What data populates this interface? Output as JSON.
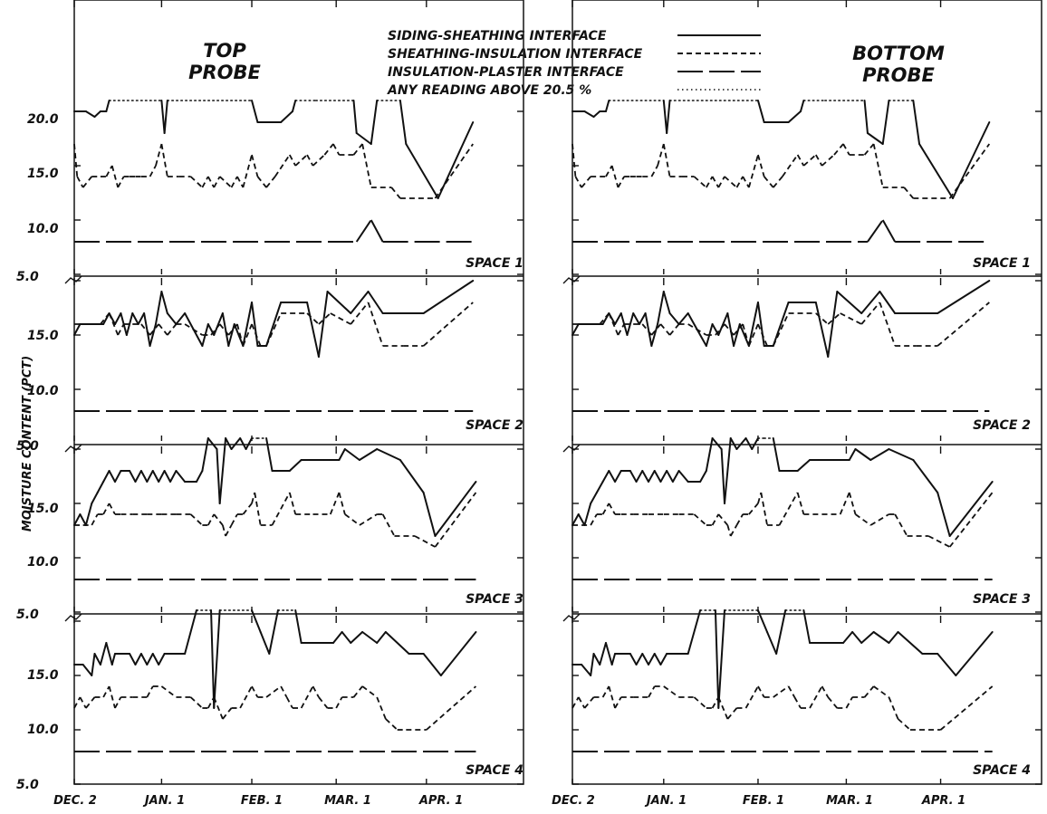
{
  "figure": {
    "ylabel": "MOISTURE CONTENT (PCT)",
    "legend": {
      "placement": "top-center",
      "entries": [
        {
          "label": "SIDING-SHEATHING INTERFACE",
          "style": "solid"
        },
        {
          "label": "SHEATHING-INSULATION INTERFACE",
          "style": "short-dash"
        },
        {
          "label": "INSULATION-PLASTER INTERFACE",
          "style": "long-dash"
        },
        {
          "label": "ANY READING ABOVE 20.5 %",
          "style": "dotted"
        }
      ]
    },
    "columns": [
      {
        "title_line1": "TOP",
        "title_line2": "PROBE"
      },
      {
        "title_line1": "BOTTOM",
        "title_line2": "PROBE"
      }
    ],
    "x_ticks": [
      "DEC. 2",
      "JAN. 1",
      "FEB. 1",
      "MAR. 1",
      "APR. 1"
    ],
    "y_ticks": [
      "5.0",
      "10.0",
      "15.0",
      "20.0"
    ],
    "panel_labels": [
      "SPACE 1",
      "SPACE 2",
      "SPACE 3",
      "SPACE 4"
    ],
    "colors": {
      "ink": "#111111",
      "paper": "#ffffff"
    }
  },
  "chart_data": {
    "type": "line",
    "x_unit": "days since DEC. 2",
    "x_tick_values": [
      0,
      30,
      61,
      90,
      121
    ],
    "xlim": [
      0,
      150
    ],
    "ylim": [
      5,
      21.8
    ],
    "grid": false,
    "above_threshold": 20.5,
    "panels": [
      {
        "space": "SPACE 1",
        "siding_sheathing": [
          [
            0,
            20
          ],
          [
            4,
            20
          ],
          [
            7,
            19.5
          ],
          [
            9,
            20
          ],
          [
            11,
            20
          ],
          [
            12,
            21
          ],
          [
            30,
            21
          ],
          [
            31,
            18
          ],
          [
            32,
            21
          ],
          [
            61,
            21
          ],
          [
            63,
            19
          ],
          [
            71,
            19
          ],
          [
            75,
            20
          ],
          [
            76,
            21
          ],
          [
            83,
            21
          ],
          [
            96,
            21
          ],
          [
            97,
            18
          ],
          [
            102,
            17
          ],
          [
            104,
            21
          ],
          [
            112,
            21
          ],
          [
            114,
            17
          ],
          [
            125,
            12
          ],
          [
            137,
            19
          ]
        ],
        "sheathing_insulation": [
          [
            0,
            17
          ],
          [
            1,
            14
          ],
          [
            3,
            13
          ],
          [
            6,
            14
          ],
          [
            9,
            14
          ],
          [
            11,
            14
          ],
          [
            13,
            15
          ],
          [
            15,
            13
          ],
          [
            17,
            14
          ],
          [
            19,
            14
          ],
          [
            21,
            14
          ],
          [
            23,
            14
          ],
          [
            26,
            14
          ],
          [
            28,
            15
          ],
          [
            30,
            17
          ],
          [
            32,
            14
          ],
          [
            36,
            14
          ],
          [
            40,
            14
          ],
          [
            44,
            13
          ],
          [
            46,
            14
          ],
          [
            48,
            13
          ],
          [
            50,
            14
          ],
          [
            54,
            13
          ],
          [
            56,
            14
          ],
          [
            58,
            13
          ],
          [
            61,
            16
          ],
          [
            63,
            14
          ],
          [
            66,
            13
          ],
          [
            69,
            14
          ],
          [
            74,
            16
          ],
          [
            76,
            15
          ],
          [
            80,
            16
          ],
          [
            82,
            15
          ],
          [
            86,
            16
          ],
          [
            89,
            17
          ],
          [
            91,
            16
          ],
          [
            96,
            16
          ],
          [
            99,
            17
          ],
          [
            102,
            13
          ],
          [
            109,
            13
          ],
          [
            112,
            12
          ],
          [
            124,
            12
          ],
          [
            137,
            17
          ]
        ],
        "insulation_plaster": [
          [
            0,
            8
          ],
          [
            97,
            8
          ],
          [
            102,
            10
          ],
          [
            106,
            8
          ],
          [
            137,
            8
          ]
        ]
      },
      {
        "space": "SPACE 2",
        "siding_sheathing": [
          [
            0,
            15
          ],
          [
            2,
            16
          ],
          [
            10,
            16
          ],
          [
            12,
            17
          ],
          [
            14,
            16
          ],
          [
            16,
            17
          ],
          [
            18,
            15
          ],
          [
            20,
            17
          ],
          [
            22,
            16
          ],
          [
            24,
            17
          ],
          [
            26,
            14
          ],
          [
            28,
            16
          ],
          [
            30,
            19
          ],
          [
            32,
            17
          ],
          [
            35,
            16
          ],
          [
            38,
            17
          ],
          [
            44,
            14
          ],
          [
            46,
            16
          ],
          [
            48,
            15
          ],
          [
            51,
            17
          ],
          [
            53,
            14
          ],
          [
            55,
            16
          ],
          [
            58,
            14
          ],
          [
            61,
            18
          ],
          [
            63,
            14
          ],
          [
            66,
            14
          ],
          [
            71,
            18
          ],
          [
            80,
            18
          ],
          [
            84,
            13
          ],
          [
            87,
            19
          ],
          [
            95,
            17
          ],
          [
            101,
            19
          ],
          [
            106,
            17
          ],
          [
            115,
            17
          ],
          [
            120,
            17
          ],
          [
            137,
            20
          ]
        ],
        "sheathing_insulation": [
          [
            0,
            16
          ],
          [
            5,
            16
          ],
          [
            9,
            16
          ],
          [
            12,
            17
          ],
          [
            15,
            15
          ],
          [
            17,
            16
          ],
          [
            20,
            16
          ],
          [
            23,
            16
          ],
          [
            26,
            15
          ],
          [
            29,
            16
          ],
          [
            32,
            15
          ],
          [
            35,
            16
          ],
          [
            38,
            16
          ],
          [
            44,
            15
          ],
          [
            47,
            15
          ],
          [
            50,
            16
          ],
          [
            53,
            15
          ],
          [
            56,
            16
          ],
          [
            58,
            14
          ],
          [
            61,
            16
          ],
          [
            64,
            14
          ],
          [
            66,
            14
          ],
          [
            71,
            17
          ],
          [
            80,
            17
          ],
          [
            84,
            16
          ],
          [
            88,
            17
          ],
          [
            95,
            16
          ],
          [
            101,
            18
          ],
          [
            106,
            14
          ],
          [
            113,
            14
          ],
          [
            120,
            14
          ],
          [
            137,
            18
          ]
        ],
        "insulation_plaster": [
          [
            0,
            8
          ],
          [
            137,
            8
          ]
        ]
      },
      {
        "space": "SPACE 3",
        "siding_sheathing": [
          [
            0,
            13
          ],
          [
            2,
            14
          ],
          [
            4,
            13
          ],
          [
            6,
            15
          ],
          [
            8,
            16
          ],
          [
            10,
            17
          ],
          [
            12,
            18
          ],
          [
            14,
            17
          ],
          [
            16,
            18
          ],
          [
            19,
            18
          ],
          [
            21,
            17
          ],
          [
            23,
            18
          ],
          [
            25,
            17
          ],
          [
            27,
            18
          ],
          [
            29,
            17
          ],
          [
            31,
            18
          ],
          [
            33,
            17
          ],
          [
            35,
            18
          ],
          [
            38,
            17
          ],
          [
            42,
            17
          ],
          [
            44,
            18
          ],
          [
            46,
            21
          ],
          [
            49,
            20
          ],
          [
            50,
            15
          ],
          [
            52,
            21
          ],
          [
            54,
            20
          ],
          [
            57,
            21
          ],
          [
            59,
            20
          ],
          [
            61,
            21
          ],
          [
            63,
            21
          ],
          [
            66,
            21
          ],
          [
            68,
            18
          ],
          [
            74,
            18
          ],
          [
            78,
            19
          ],
          [
            81,
            19
          ],
          [
            86,
            19
          ],
          [
            88,
            19
          ],
          [
            91,
            19
          ],
          [
            93,
            20
          ],
          [
            98,
            19
          ],
          [
            104,
            20
          ],
          [
            112,
            19
          ],
          [
            120,
            16
          ],
          [
            124,
            12
          ],
          [
            138,
            17
          ]
        ],
        "sheathing_insulation": [
          [
            0,
            13
          ],
          [
            3,
            13
          ],
          [
            6,
            13
          ],
          [
            8,
            14
          ],
          [
            10,
            14
          ],
          [
            12,
            15
          ],
          [
            14,
            14
          ],
          [
            16,
            14
          ],
          [
            20,
            14
          ],
          [
            25,
            14
          ],
          [
            30,
            14
          ],
          [
            35,
            14
          ],
          [
            40,
            14
          ],
          [
            44,
            13
          ],
          [
            46,
            13
          ],
          [
            48,
            14
          ],
          [
            51,
            13
          ],
          [
            52,
            12
          ],
          [
            54,
            13
          ],
          [
            56,
            14
          ],
          [
            58,
            14
          ],
          [
            61,
            15
          ],
          [
            62,
            16
          ],
          [
            64,
            13
          ],
          [
            68,
            13
          ],
          [
            74,
            16
          ],
          [
            76,
            14
          ],
          [
            82,
            14
          ],
          [
            88,
            14
          ],
          [
            91,
            16
          ],
          [
            93,
            14
          ],
          [
            98,
            13
          ],
          [
            104,
            14
          ],
          [
            106,
            14
          ],
          [
            110,
            12
          ],
          [
            117,
            12
          ],
          [
            124,
            11
          ],
          [
            138,
            16
          ]
        ],
        "insulation_plaster": [
          [
            0,
            8
          ],
          [
            138,
            8
          ]
        ]
      },
      {
        "space": "SPACE 4",
        "siding_sheathing": [
          [
            0,
            16
          ],
          [
            3,
            16
          ],
          [
            6,
            15
          ],
          [
            7,
            17
          ],
          [
            9,
            16
          ],
          [
            11,
            18
          ],
          [
            13,
            16
          ],
          [
            14,
            17
          ],
          [
            19,
            17
          ],
          [
            21,
            16
          ],
          [
            23,
            17
          ],
          [
            25,
            16
          ],
          [
            27,
            17
          ],
          [
            29,
            16
          ],
          [
            31,
            17
          ],
          [
            35,
            17
          ],
          [
            38,
            17
          ],
          [
            42,
            21
          ],
          [
            47,
            21
          ],
          [
            48,
            12
          ],
          [
            50,
            21
          ],
          [
            61,
            21
          ],
          [
            64,
            19
          ],
          [
            67,
            17
          ],
          [
            70,
            21
          ],
          [
            73,
            21
          ],
          [
            76,
            21
          ],
          [
            78,
            18
          ],
          [
            82,
            18
          ],
          [
            86,
            18
          ],
          [
            89,
            18
          ],
          [
            92,
            19
          ],
          [
            95,
            18
          ],
          [
            99,
            19
          ],
          [
            104,
            18
          ],
          [
            107,
            19
          ],
          [
            115,
            17
          ],
          [
            120,
            17
          ],
          [
            126,
            15
          ],
          [
            138,
            19
          ]
        ],
        "sheathing_insulation": [
          [
            0,
            12
          ],
          [
            2,
            13
          ],
          [
            4,
            12
          ],
          [
            7,
            13
          ],
          [
            10,
            13
          ],
          [
            12,
            14
          ],
          [
            14,
            12
          ],
          [
            16,
            13
          ],
          [
            20,
            13
          ],
          [
            25,
            13
          ],
          [
            27,
            14
          ],
          [
            30,
            14
          ],
          [
            35,
            13
          ],
          [
            40,
            13
          ],
          [
            44,
            12
          ],
          [
            46,
            12
          ],
          [
            48,
            13
          ],
          [
            51,
            11
          ],
          [
            54,
            12
          ],
          [
            57,
            12
          ],
          [
            61,
            14
          ],
          [
            63,
            13
          ],
          [
            66,
            13
          ],
          [
            71,
            14
          ],
          [
            73,
            13
          ],
          [
            75,
            12
          ],
          [
            78,
            12
          ],
          [
            82,
            14
          ],
          [
            84,
            13
          ],
          [
            87,
            12
          ],
          [
            90,
            12
          ],
          [
            92,
            13
          ],
          [
            96,
            13
          ],
          [
            99,
            14
          ],
          [
            104,
            13
          ],
          [
            107,
            11
          ],
          [
            111,
            10
          ],
          [
            114,
            10
          ],
          [
            121,
            10
          ],
          [
            138,
            14
          ]
        ],
        "insulation_plaster": [
          [
            0,
            8
          ],
          [
            138,
            8
          ]
        ]
      }
    ]
  }
}
